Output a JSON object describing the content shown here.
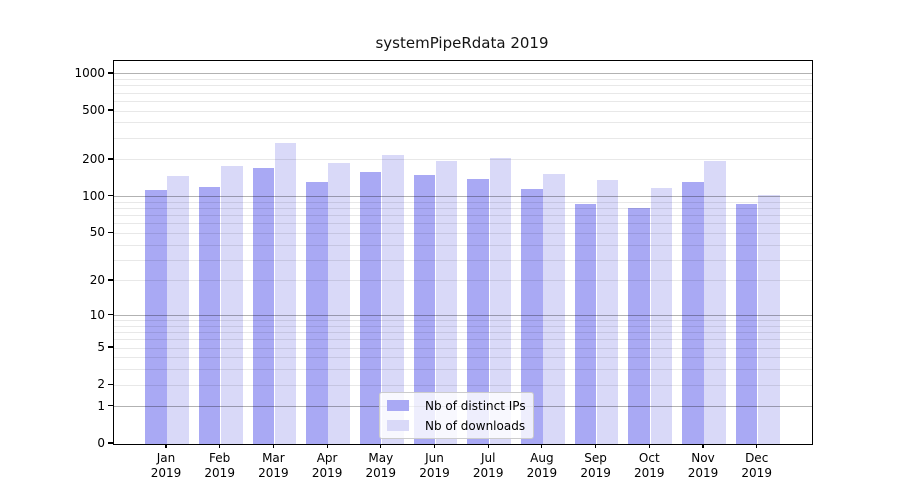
{
  "chart_data": {
    "type": "bar",
    "title": "systemPipeRdata 2019",
    "categories": [
      "Jan 2019",
      "Feb 2019",
      "Mar 2019",
      "Apr 2019",
      "May 2019",
      "Jun 2019",
      "Jul 2019",
      "Aug 2019",
      "Sep 2019",
      "Oct 2019",
      "Nov 2019",
      "Dec 2019"
    ],
    "series": [
      {
        "name": "Nb of distinct IPs",
        "color": "#a9a9f4",
        "values": [
          113,
          120,
          171,
          131,
          161,
          151,
          140,
          116,
          88,
          81,
          131,
          87
        ]
      },
      {
        "name": "Nb of downloads",
        "color": "#d9d9f8",
        "values": [
          148,
          177,
          273,
          188,
          220,
          196,
          206,
          154,
          136,
          119,
          197,
          104
        ]
      }
    ],
    "yscale": "log1p",
    "ylim": [
      0,
      1000
    ],
    "y_ticks": [
      0,
      1,
      2,
      5,
      10,
      20,
      50,
      100,
      200,
      500,
      1000
    ],
    "grid_major": [
      1,
      10,
      100,
      1000
    ],
    "grid_minor": [
      2,
      3,
      4,
      5,
      6,
      7,
      8,
      9,
      20,
      30,
      40,
      50,
      60,
      70,
      80,
      90,
      200,
      300,
      400,
      500,
      600,
      700,
      800,
      900
    ],
    "legend": {
      "position": "lower center",
      "entries": [
        "Nb of distinct IPs",
        "Nb of downloads"
      ]
    }
  },
  "colors": {
    "grid_major": "rgba(0,0,0,0.30)",
    "grid_minor": "rgba(0,0,0,0.09)",
    "axis": "#000000",
    "text": "#000000",
    "legend_border": "#cccccc"
  }
}
